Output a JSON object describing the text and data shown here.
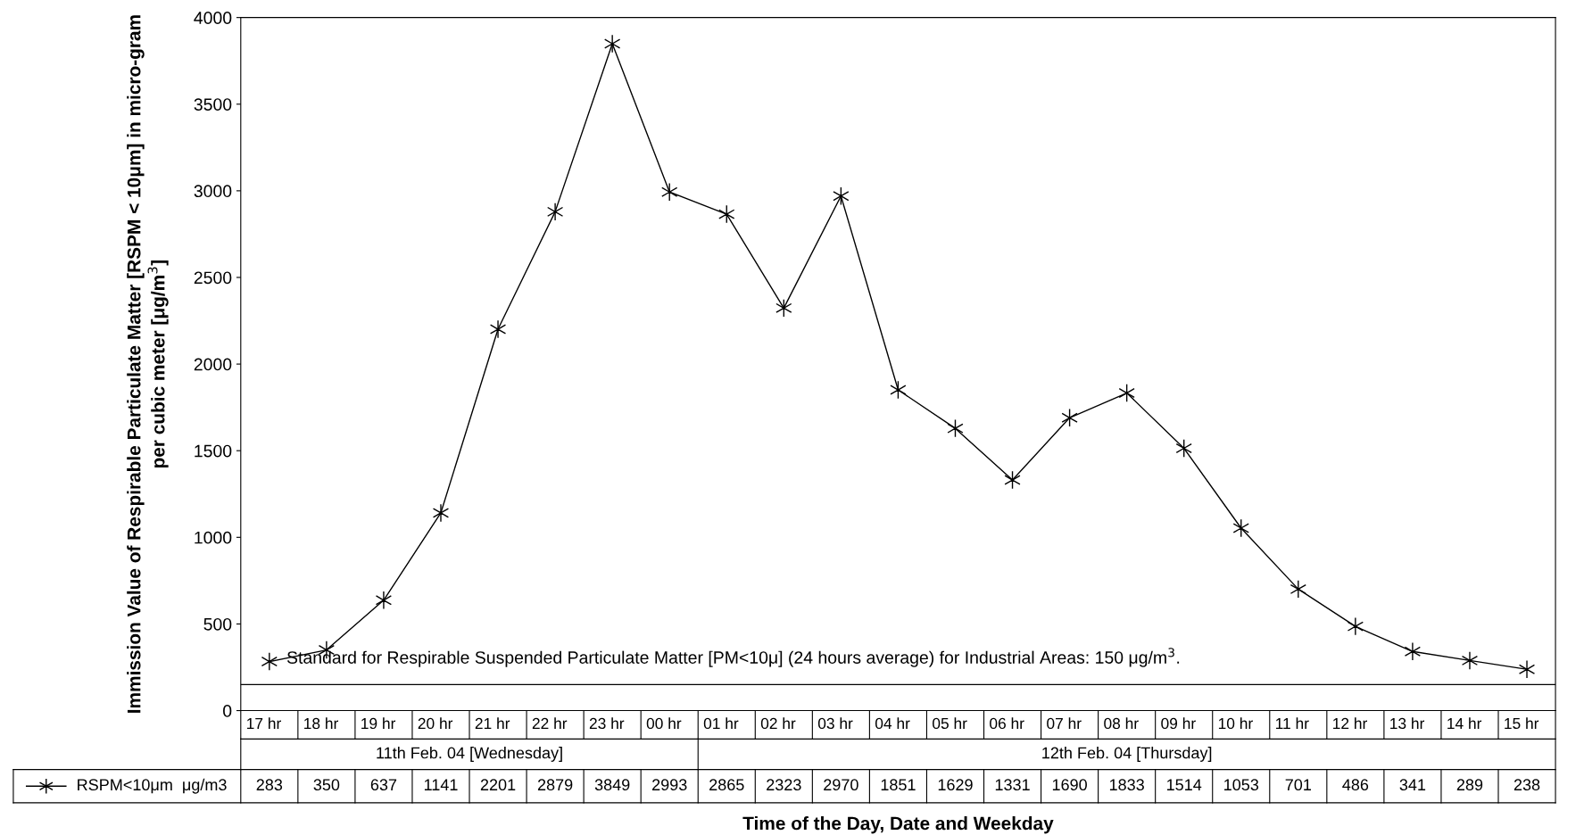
{
  "chart_data": {
    "type": "line",
    "ylabel": "Immission Value of Respirable Particulate Matter [RSPM < 10μm] in micro-gram per cubic meter [μg/m$^{3}$]",
    "xlabel": "Time of the Day, Date and Weekday",
    "categories": [
      "17 hr",
      "18 hr",
      "19 hr",
      "20 hr",
      "21 hr",
      "22 hr",
      "23 hr",
      "00 hr",
      "01 hr",
      "02 hr",
      "03 hr",
      "04 hr",
      "05 hr",
      "06 hr",
      "07 hr",
      "08 hr",
      "09 hr",
      "10 hr",
      "11 hr",
      "12 hr",
      "13 hr",
      "14 hr",
      "15 hr"
    ],
    "series": [
      {
        "name": "RSPM<10μm  μg/m3",
        "color": "#000000",
        "values": [
          283,
          350,
          637,
          1141,
          2201,
          2879,
          3849,
          2993,
          2865,
          2323,
          2970,
          1851,
          1629,
          1331,
          1690,
          1833,
          1514,
          1053,
          701,
          486,
          341,
          289,
          238
        ]
      }
    ],
    "ylim": [
      0,
      4000
    ],
    "yticks": [
      0,
      500,
      1000,
      1500,
      2000,
      2500,
      3000,
      3500,
      4000
    ],
    "ref_lines": [
      {
        "axis": "y",
        "value": 150,
        "label": "Standard for Respirable Suspended Particulate Matter [PM<10μ] (24 hours average) for Industrial Areas: 150 μg/m$^{3}$.",
        "color": "#000000",
        "line_style": "solid"
      }
    ],
    "annotations": [
      "11th Feb. 04 [Wednesday]",
      "12th Feb. 04 [Thursday]"
    ],
    "data_labels": true,
    "legend": "bottom left",
    "marker": "cross",
    "line_style": "solid",
    "grid": false
  }
}
